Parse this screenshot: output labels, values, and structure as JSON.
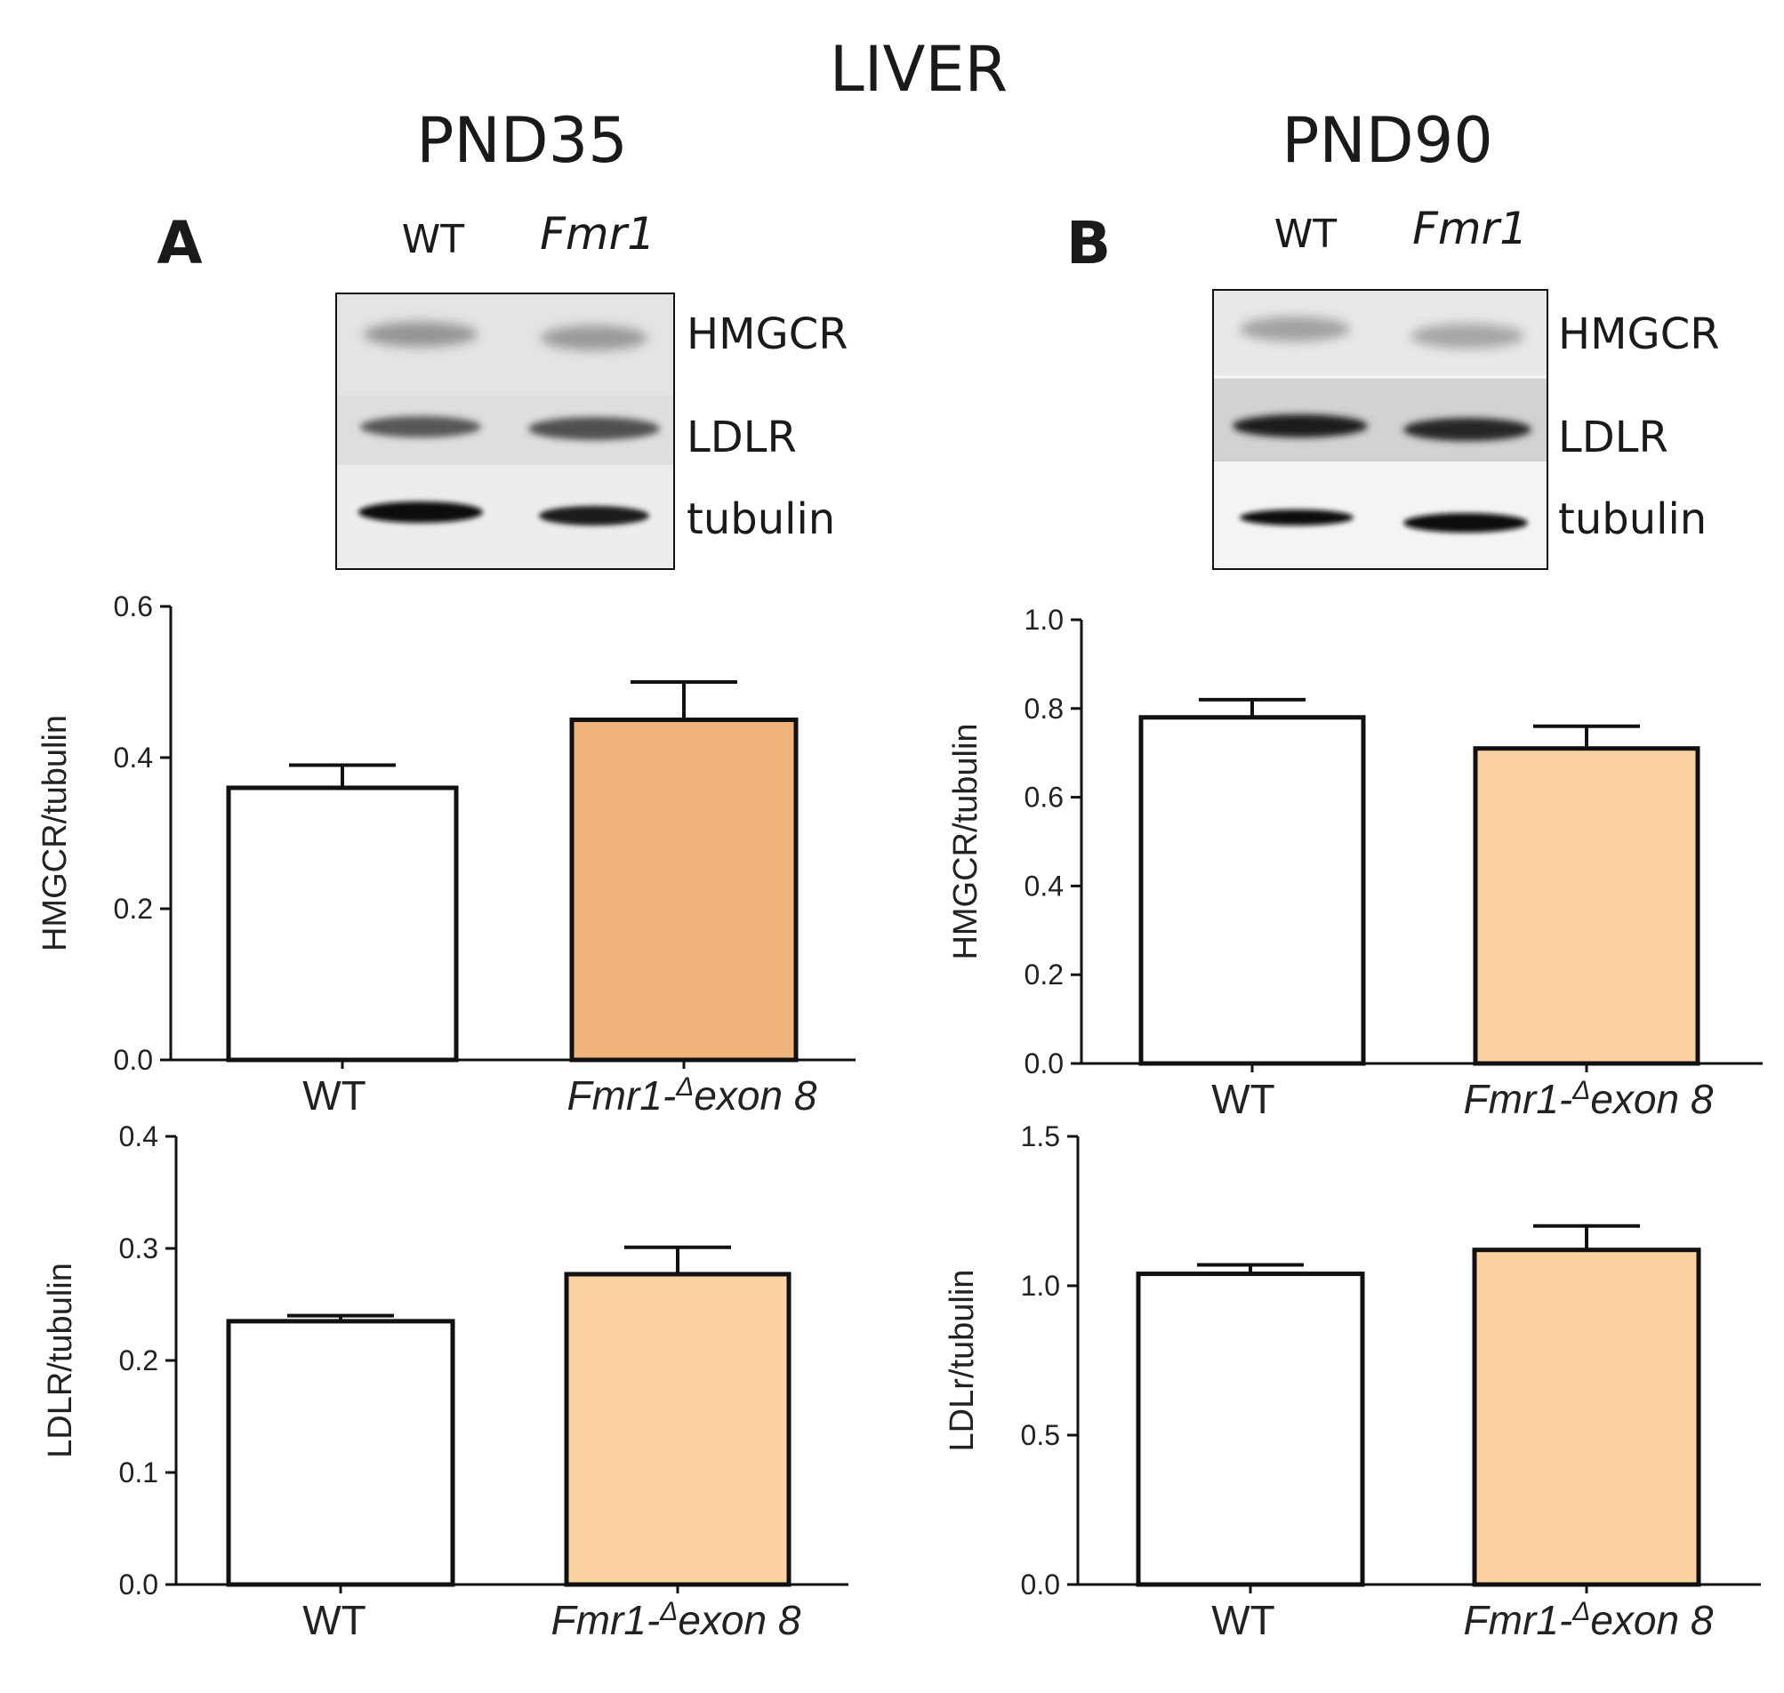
{
  "figure": {
    "title": "LIVER",
    "columns": [
      {
        "title": "PND35",
        "panel_letter": "A"
      },
      {
        "title": "PND90",
        "panel_letter": "B"
      }
    ]
  },
  "blots": [
    {
      "lane_labels": [
        "WT",
        "Fmr1"
      ],
      "bands": [
        "HMGCR",
        "LDLR",
        "tubulin"
      ]
    },
    {
      "lane_labels": [
        "WT",
        "Fmr1"
      ],
      "bands": [
        "HMGCR",
        "LDLR",
        "tubulin"
      ]
    }
  ],
  "colors": {
    "wt_fill": "#ffffff",
    "fmr1_fill_dark": "#f0b47b",
    "fmr1_fill_light": "#fbd1a2",
    "stroke": "#111111"
  },
  "chart_data": [
    {
      "type": "bar",
      "categories": [
        "WT",
        "Fmr1-Δexon  8"
      ],
      "category_parts": [
        {
          "main": "WT",
          "sup": "",
          "tail": ""
        },
        {
          "main": "Fmr1-",
          "sup": "Δ",
          "tail": "exon  8"
        }
      ],
      "values": [
        0.36,
        0.45
      ],
      "errors": [
        0.03,
        0.05
      ],
      "ylabel": "HMGCR/tubulin",
      "ylim": [
        0,
        0.6
      ],
      "yticks": [
        "0.0",
        "0.2",
        "0.4",
        "0.6"
      ],
      "fills": [
        "#ffffff",
        "#f0b47b"
      ]
    },
    {
      "type": "bar",
      "categories": [
        "WT",
        "Fmr1-Δexon  8"
      ],
      "category_parts": [
        {
          "main": "WT",
          "sup": "",
          "tail": ""
        },
        {
          "main": "Fmr1-",
          "sup": "Δ",
          "tail": "exon  8"
        }
      ],
      "values": [
        0.78,
        0.71
      ],
      "errors": [
        0.04,
        0.05
      ],
      "ylabel": "HMGCR/tubulin",
      "ylim": [
        0,
        1.0
      ],
      "yticks": [
        "0.0",
        "0.2",
        "0.4",
        "0.6",
        "0.8",
        "1.0"
      ],
      "fills": [
        "#ffffff",
        "#fbd1a2"
      ]
    },
    {
      "type": "bar",
      "categories": [
        "WT",
        "Fmr1-Δexon  8"
      ],
      "category_parts": [
        {
          "main": "WT",
          "sup": "",
          "tail": ""
        },
        {
          "main": "Fmr1-",
          "sup": "Δ",
          "tail": "exon  8"
        }
      ],
      "values": [
        0.235,
        0.277
      ],
      "errors": [
        0.005,
        0.024
      ],
      "ylabel": "LDLR/tubulin",
      "ylim": [
        0,
        0.4
      ],
      "yticks": [
        "0.0",
        "0.1",
        "0.2",
        "0.3",
        "0.4"
      ],
      "fills": [
        "#ffffff",
        "#fbd1a2"
      ]
    },
    {
      "type": "bar",
      "categories": [
        "WT",
        "Fmr1-Δexon  8"
      ],
      "category_parts": [
        {
          "main": "WT",
          "sup": "",
          "tail": ""
        },
        {
          "main": "Fmr1-",
          "sup": "Δ",
          "tail": "exon  8"
        }
      ],
      "values": [
        1.04,
        1.12
      ],
      "errors": [
        0.03,
        0.08
      ],
      "ylabel": "LDLr/tubulin",
      "ylim": [
        0,
        1.5
      ],
      "yticks": [
        "0.0",
        "0.5",
        "1.0",
        "1.5"
      ],
      "fills": [
        "#ffffff",
        "#fbd1a2"
      ]
    }
  ]
}
